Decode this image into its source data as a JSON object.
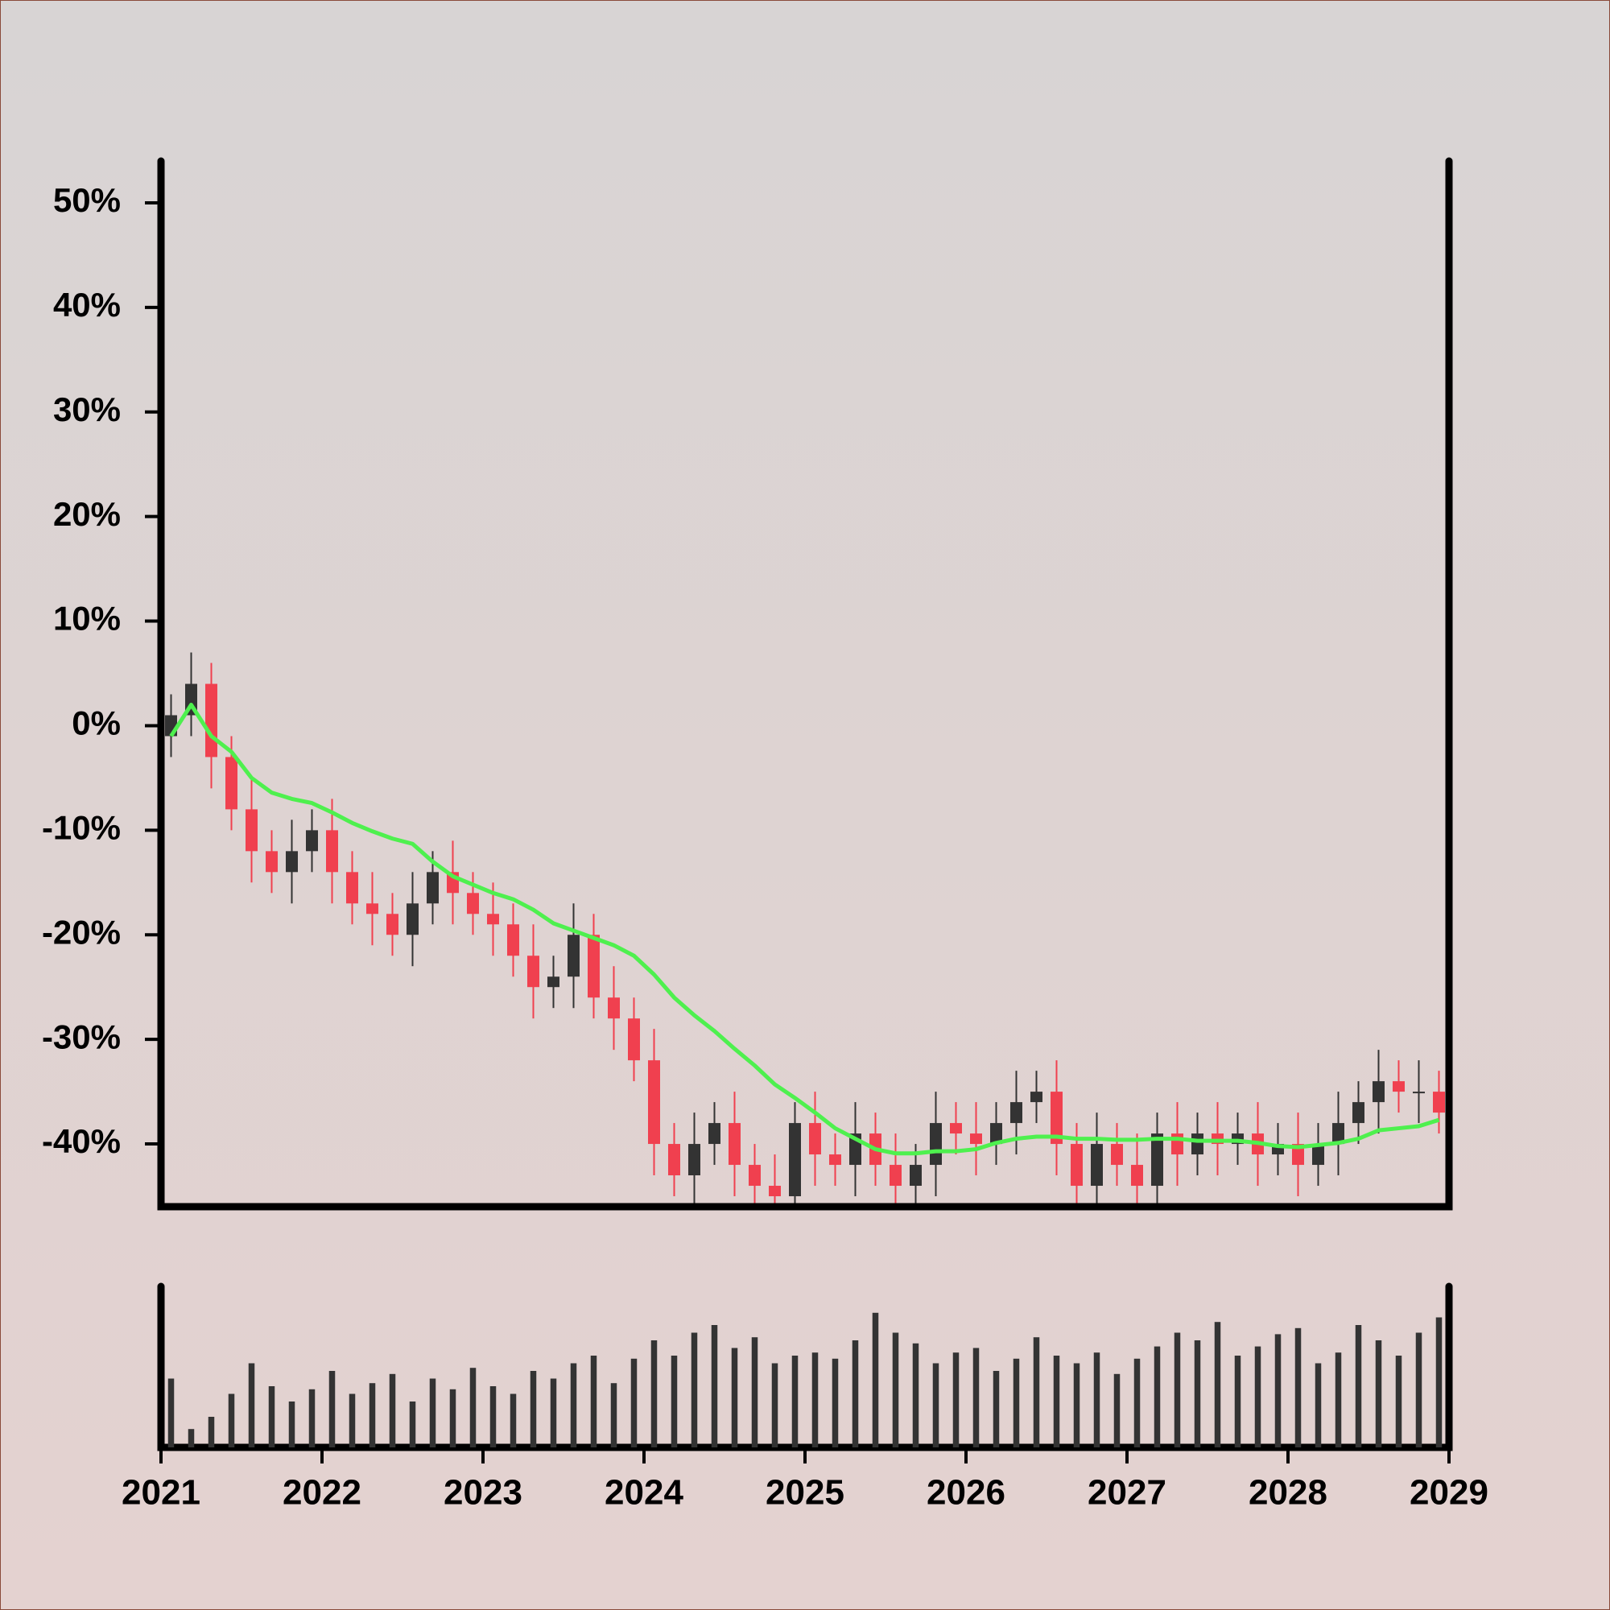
{
  "chart_data": {
    "type": "candlestick",
    "x": [
      2021.0625,
      2021.1875,
      2021.3125,
      2021.4375,
      2021.5625,
      2021.6875,
      2021.8125,
      2021.9375,
      2022.0625,
      2022.1875,
      2022.3125,
      2022.4375,
      2022.5625,
      2022.6875,
      2022.8125,
      2022.9375,
      2023.0625,
      2023.1875,
      2023.3125,
      2023.4375,
      2023.5625,
      2023.6875,
      2023.8125,
      2023.9375,
      2024.0625,
      2024.1875,
      2024.3125,
      2024.4375,
      2024.5625,
      2024.6875,
      2024.8125,
      2024.9375,
      2025.0625,
      2025.1875,
      2025.3125,
      2025.4375,
      2025.5625,
      2025.6875,
      2025.8125,
      2025.9375,
      2026.0625,
      2026.1875,
      2026.3125,
      2026.4375,
      2026.5625,
      2026.6875,
      2026.8125,
      2026.9375,
      2027.0625,
      2027.1875,
      2027.3125,
      2027.4375,
      2027.5625,
      2027.6875,
      2027.8125,
      2027.9375,
      2028.0625,
      2028.1875,
      2028.3125,
      2028.4375,
      2028.5625,
      2028.6875,
      2028.8125,
      2028.9375
    ],
    "open": [
      -1,
      1,
      4,
      -3,
      -8,
      -12,
      -14,
      -12,
      -10,
      -14,
      -17,
      -18,
      -20,
      -17,
      -14,
      -16,
      -18,
      -19,
      -22,
      -25,
      -24,
      -20,
      -26,
      -28,
      -32,
      -40,
      -43,
      -40,
      -38,
      -42,
      -44,
      -45,
      -38,
      -41,
      -42,
      -39,
      -42,
      -44,
      -42,
      -38,
      -39,
      -40,
      -38,
      -36,
      -35,
      -40,
      -44,
      -40,
      -42,
      -44,
      -39,
      -41,
      -39,
      -40,
      -39,
      -41,
      -40,
      -42,
      -40,
      -38,
      -36,
      -34,
      -35,
      -35
    ],
    "high": [
      3,
      7,
      6,
      -1,
      -5,
      -10,
      -9,
      -8,
      -7,
      -12,
      -14,
      -16,
      -14,
      -12,
      -11,
      -14,
      -15,
      -17,
      -19,
      -22,
      -17,
      -18,
      -23,
      -26,
      -29,
      -38,
      -37,
      -36,
      -35,
      -40,
      -41,
      -36,
      -35,
      -39,
      -36,
      -37,
      -39,
      -40,
      -35,
      -36,
      -36,
      -36,
      -33,
      -33,
      -32,
      -38,
      -37,
      -38,
      -39,
      -37,
      -36,
      -37,
      -36,
      -37,
      -36,
      -38,
      -37,
      -38,
      -35,
      -34,
      -31,
      -32,
      -32,
      -33
    ],
    "low": [
      -3,
      -1,
      -6,
      -10,
      -15,
      -16,
      -17,
      -14,
      -17,
      -19,
      -21,
      -22,
      -23,
      -19,
      -19,
      -20,
      -22,
      -24,
      -28,
      -27,
      -27,
      -28,
      -31,
      -34,
      -43,
      -45,
      -46,
      -42,
      -45,
      -46,
      -48,
      -47,
      -44,
      -44,
      -45,
      -44,
      -47,
      -46,
      -45,
      -41,
      -43,
      -42,
      -41,
      -38,
      -43,
      -46,
      -47,
      -44,
      -47,
      -46,
      -44,
      -43,
      -43,
      -42,
      -44,
      -43,
      -45,
      -44,
      -43,
      -40,
      -39,
      -37,
      -38,
      -39
    ],
    "close": [
      1,
      4,
      -3,
      -8,
      -12,
      -14,
      -12,
      -10,
      -14,
      -17,
      -18,
      -20,
      -17,
      -14,
      -16,
      -18,
      -19,
      -22,
      -25,
      -24,
      -20,
      -26,
      -28,
      -32,
      -40,
      -43,
      -40,
      -38,
      -42,
      -44,
      -45,
      -38,
      -41,
      -42,
      -39,
      -42,
      -44,
      -42,
      -38,
      -39,
      -40,
      -38,
      -36,
      -35,
      -40,
      -44,
      -40,
      -42,
      -44,
      -39,
      -41,
      -39,
      -40,
      -39,
      -41,
      -40,
      -42,
      -40,
      -38,
      -36,
      -34,
      -35,
      -35,
      -37
    ],
    "up_color": "#333333",
    "down_color": "#f0404f",
    "moving_average": {
      "color": "#4ef04e",
      "values": [
        -1,
        2,
        -1,
        -2.5,
        -5,
        -6.4,
        -7,
        -7.4,
        -8.3,
        -9.3,
        -10.1,
        -10.8,
        -11.3,
        -13,
        -14.4,
        -15.2,
        -16,
        -16.6,
        -17.6,
        -18.9,
        -19.6,
        -20.3,
        -21,
        -22,
        -23.8,
        -26,
        -27.7,
        -29.2,
        -30.9,
        -32.5,
        -34.3,
        -35.6,
        -37,
        -38.5,
        -39.5,
        -40.5,
        -40.9,
        -40.9,
        -40.7,
        -40.7,
        -40.5,
        -39.9,
        -39.5,
        -39.3,
        -39.3,
        -39.5,
        -39.5,
        -39.6,
        -39.6,
        -39.5,
        -39.5,
        -39.7,
        -39.7,
        -39.7,
        -39.9,
        -40.2,
        -40.3,
        -40.1,
        -39.9,
        -39.5,
        -38.7,
        -38.5,
        -38.3,
        -37.7
      ]
    },
    "volume": {
      "color": "#333333",
      "ylim": [
        0,
        100
      ],
      "values": [
        45,
        12,
        20,
        35,
        55,
        40,
        30,
        38,
        50,
        35,
        42,
        48,
        30,
        45,
        38,
        52,
        40,
        35,
        50,
        45,
        55,
        60,
        42,
        58,
        70,
        60,
        75,
        80,
        65,
        72,
        55,
        60,
        62,
        58,
        70,
        88,
        75,
        68,
        55,
        62,
        65,
        50,
        58,
        72,
        60,
        55,
        62,
        48,
        58,
        66,
        75,
        70,
        82,
        60,
        66,
        74,
        78,
        55,
        62,
        80,
        70,
        60,
        75,
        85
      ]
    },
    "xlim": [
      2021,
      2029
    ],
    "xticks": [
      2021,
      2022,
      2023,
      2024,
      2025,
      2026,
      2027,
      2028,
      2029
    ],
    "ylim": [
      -46,
      54
    ],
    "yticks": [
      {
        "value": 50,
        "label": "50%"
      },
      {
        "value": 40,
        "label": "40%"
      },
      {
        "value": 30,
        "label": "30%"
      },
      {
        "value": 20,
        "label": "20%"
      },
      {
        "value": 10,
        "label": "10%"
      },
      {
        "value": 0,
        "label": "0%"
      },
      {
        "value": -10,
        "label": "-10%"
      },
      {
        "value": -20,
        "label": "-20%"
      },
      {
        "value": -30,
        "label": "-30%"
      },
      {
        "value": -40,
        "label": "-40%"
      }
    ]
  }
}
